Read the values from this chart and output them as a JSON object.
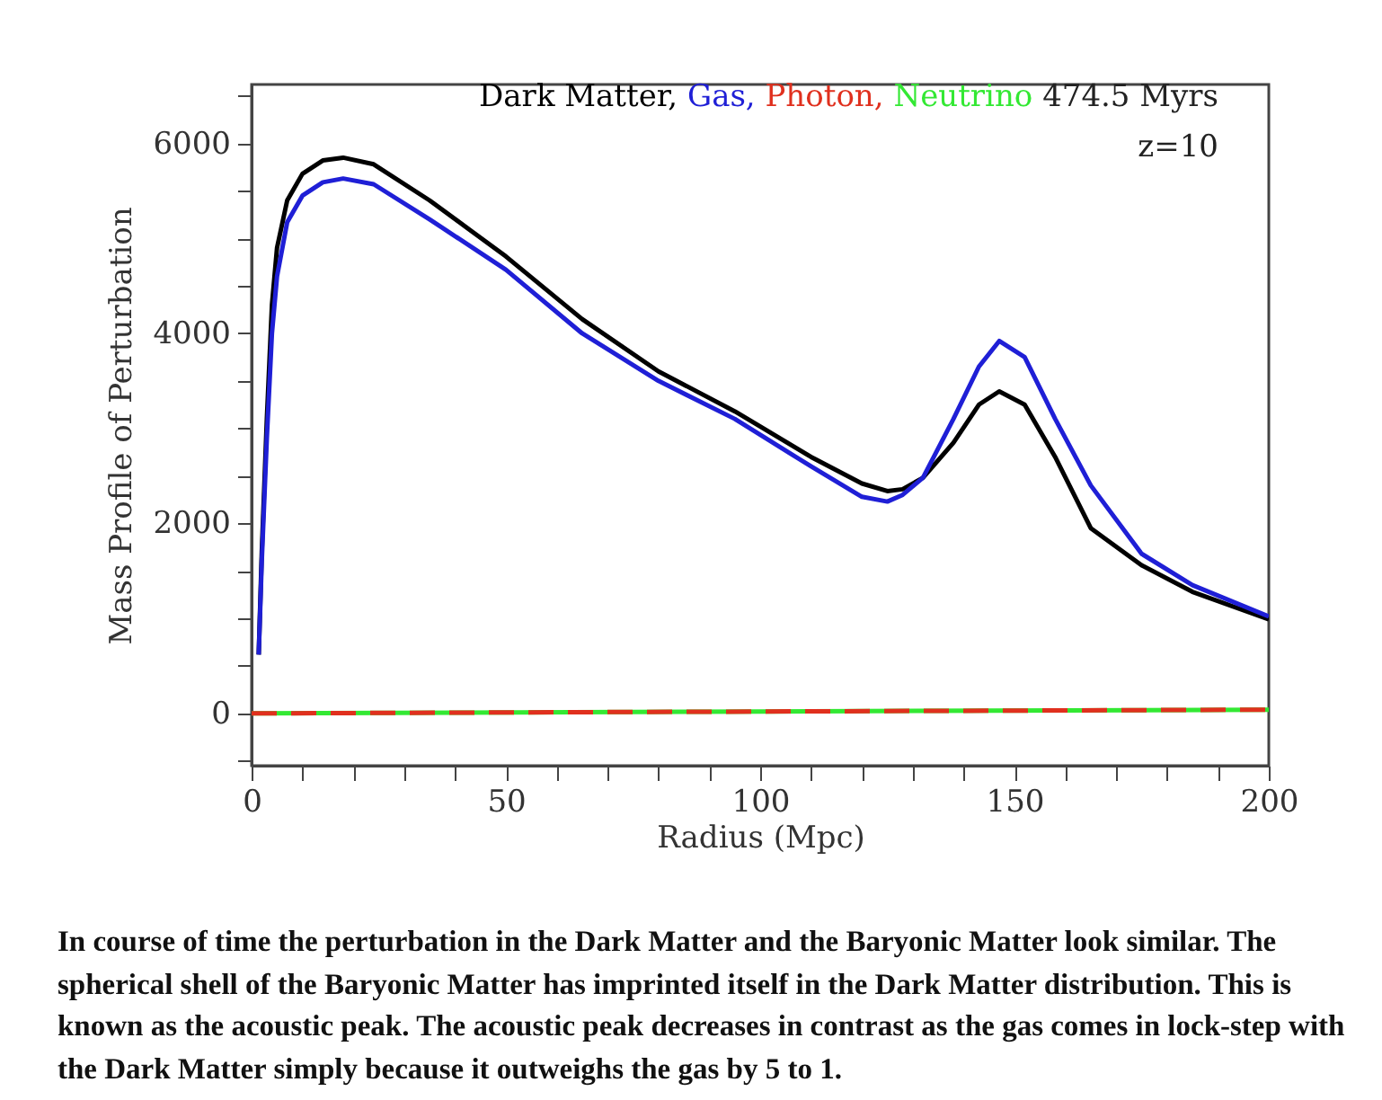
{
  "chart_data": {
    "type": "line",
    "xlabel": "Radius (Mpc)",
    "ylabel": "Mass Profile of Perturbation",
    "x": [
      1.4,
      2,
      3,
      4,
      5,
      7,
      10,
      14,
      18,
      24,
      35,
      50,
      65,
      80,
      95,
      110,
      120,
      125,
      128,
      132,
      138,
      143,
      147,
      152,
      158,
      165,
      175,
      185,
      200
    ],
    "series": [
      {
        "name": "Dark Matter,",
        "color": "#000000",
        "values": [
          620,
          1700,
          3100,
          4300,
          4900,
          5400,
          5680,
          5820,
          5850,
          5780,
          5400,
          4810,
          4150,
          3600,
          3180,
          2700,
          2420,
          2340,
          2360,
          2480,
          2850,
          3250,
          3390,
          3250,
          2700,
          1950,
          1560,
          1280,
          990
        ]
      },
      {
        "name": "Gas,",
        "color": "#1f1fd6",
        "values": [
          620,
          1600,
          2900,
          4000,
          4600,
          5170,
          5450,
          5590,
          5630,
          5570,
          5200,
          4670,
          4000,
          3500,
          3100,
          2600,
          2280,
          2230,
          2300,
          2480,
          3100,
          3650,
          3920,
          3750,
          3100,
          2400,
          1680,
          1350,
          1020
        ]
      },
      {
        "name": "Photon,",
        "color": "#e0301e",
        "x": [
          0,
          100,
          200
        ],
        "values": [
          0,
          20,
          40
        ],
        "line_style": "dashed"
      },
      {
        "name": "Neutrino",
        "color": "#33e833",
        "x": [
          0,
          100,
          200
        ],
        "values": [
          0,
          20,
          40
        ],
        "line_style": "solid"
      }
    ],
    "xlim": [
      0,
      200
    ],
    "xticks": [
      0,
      {
        "value": 10,
        "label": null
      },
      {
        "value": 20,
        "label": null
      },
      {
        "value": 30,
        "label": null
      },
      {
        "value": 40,
        "label": null
      },
      50,
      {
        "value": 60,
        "label": null
      },
      {
        "value": 70,
        "label": null
      },
      {
        "value": 80,
        "label": null
      },
      {
        "value": 90,
        "label": null
      },
      100,
      {
        "value": 110,
        "label": null
      },
      {
        "value": 120,
        "label": null
      },
      {
        "value": 130,
        "label": null
      },
      {
        "value": 140,
        "label": null
      },
      150,
      {
        "value": 160,
        "label": null
      },
      {
        "value": 170,
        "label": null
      },
      {
        "value": 180,
        "label": null
      },
      {
        "value": 190,
        "label": null
      },
      200
    ],
    "ylim": [
      -550,
      6620
    ],
    "yticks": [
      {
        "value": -500,
        "label": null
      },
      0,
      {
        "value": 500,
        "label": null
      },
      {
        "value": 1000,
        "label": null
      },
      {
        "value": 1500,
        "label": null
      },
      2000,
      {
        "value": 2500,
        "label": null
      },
      {
        "value": 3000,
        "label": null
      },
      {
        "value": 3500,
        "label": null
      },
      4000,
      {
        "value": 4500,
        "label": null
      },
      {
        "value": 5000,
        "label": null
      },
      {
        "value": 5500,
        "label": null
      },
      6000,
      {
        "value": 6500,
        "label": null
      }
    ],
    "grid": false,
    "legend": "top right",
    "annotations": [
      "474.5 Myrs",
      "z=10",
      "In course of time the perturbation in the Dark Matter and the Baryonic Matter look similar. The spherical shell of the Baryonic Matter has imprinted itself in the Dark Matter distribution. This is known as the acoustic peak. The acoustic peak decreases in contrast as the gas comes in lock-step with the Dark Matter simply because it outweighs the gas by 5 to 1."
    ]
  }
}
